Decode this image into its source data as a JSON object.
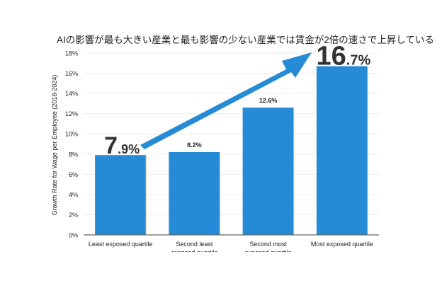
{
  "chart_data": {
    "type": "bar",
    "title": "AIの影響が最も大きい産業と最も影響の少ない産業では賃金が2倍の速さで上昇している",
    "xlabel": "",
    "ylabel": "Growth Rate for Wage per Employee (2018-2024)",
    "categories": [
      "Least exposed quartile",
      "Second least exposed quartile",
      "Second most exposed quartile",
      "Most exposed quartile"
    ],
    "values": [
      7.9,
      8.2,
      12.6,
      16.7
    ],
    "data_labels": [
      "7.9%",
      "8.2%",
      "12.6%",
      "16.7%"
    ],
    "highlighted_labels": [
      0,
      3
    ],
    "ylim": [
      0,
      18
    ],
    "yticks": [
      "0%",
      "2%",
      "4%",
      "6%",
      "8%",
      "10%",
      "12%",
      "14%",
      "16%",
      "18%"
    ],
    "grid": true,
    "bar_color": "#268bd6",
    "arrow": {
      "from": "Least exposed quartile",
      "to": "Most exposed quartile",
      "color": "#268bd6"
    }
  }
}
